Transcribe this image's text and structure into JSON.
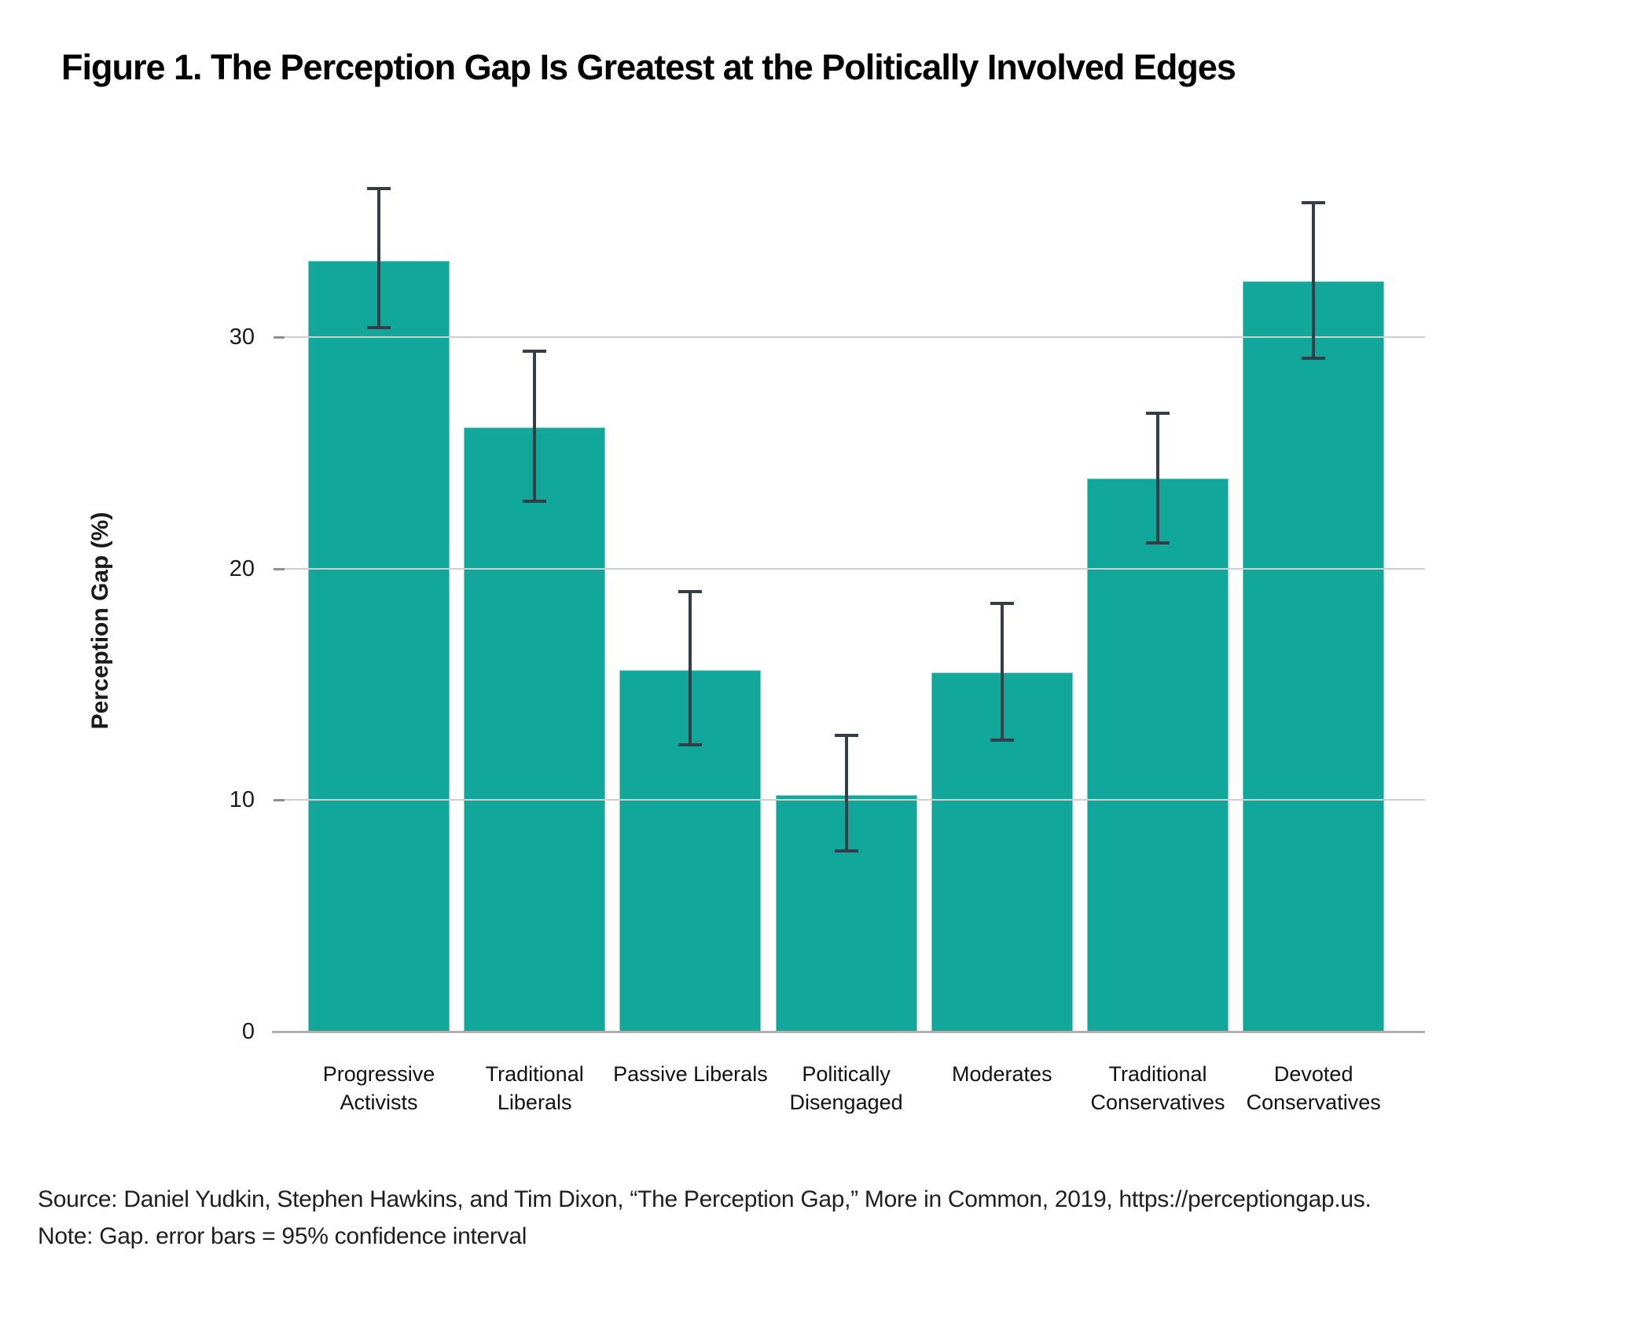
{
  "title": "Figure 1. The Perception Gap Is Greatest at the Politically Involved Edges",
  "chart_data": {
    "type": "bar",
    "title": "Figure 1. The Perception Gap Is Greatest at the Politically Involved Edges",
    "xlabel": "",
    "ylabel": "Perception Gap (%)",
    "ylim": [
      0,
      37
    ],
    "yticks": [
      0,
      10,
      20,
      30
    ],
    "grid": true,
    "legend": "none",
    "categories": [
      "Progressive Activists",
      "Traditional Liberals",
      "Passive Liberals",
      "Politically Disengaged",
      "Moderates",
      "Traditional Conservatives",
      "Devoted Conservatives"
    ],
    "values": [
      33.3,
      26.1,
      15.6,
      10.2,
      15.5,
      23.9,
      32.4
    ],
    "ci_low": [
      30.4,
      22.9,
      12.4,
      7.8,
      12.6,
      21.1,
      29.1
    ],
    "ci_high": [
      36.4,
      29.4,
      19.0,
      12.8,
      18.5,
      26.7,
      35.8
    ],
    "error_bar_meaning": "95% confidence interval",
    "colors": {
      "bar": "#12A79B",
      "error_bar": "#333E48",
      "gridline": "#CFCFCF",
      "axis_line": "#B0B0B0"
    }
  },
  "footer": {
    "source": "Source: Daniel Yudkin, Stephen Hawkins, and Tim Dixon, “The Perception Gap,” More in Common, 2019, https://perceptiongap.us.",
    "note": "Note: Gap. error bars = 95% confidence interval"
  }
}
